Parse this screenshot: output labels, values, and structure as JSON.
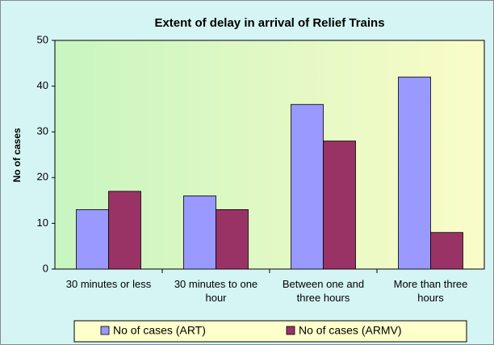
{
  "chart_data": {
    "type": "bar",
    "title": "Extent of delay in arrival of Relief Trains",
    "y_label": "No of cases",
    "categories": [
      "30 minutes or less",
      "30 minutes to one hour",
      "Between one and three hours",
      "More than three hours"
    ],
    "series": [
      {
        "name": "No of cases (ART)",
        "color": "#9999ff",
        "values": [
          13,
          16,
          36,
          42
        ]
      },
      {
        "name": "No of cases (ARMV)",
        "color": "#993366",
        "values": [
          17,
          13,
          28,
          8
        ]
      }
    ],
    "ylim": [
      0,
      50
    ],
    "yticks": [
      0,
      10,
      20,
      30,
      40,
      50
    ],
    "grid": false,
    "legend": "bottom"
  }
}
